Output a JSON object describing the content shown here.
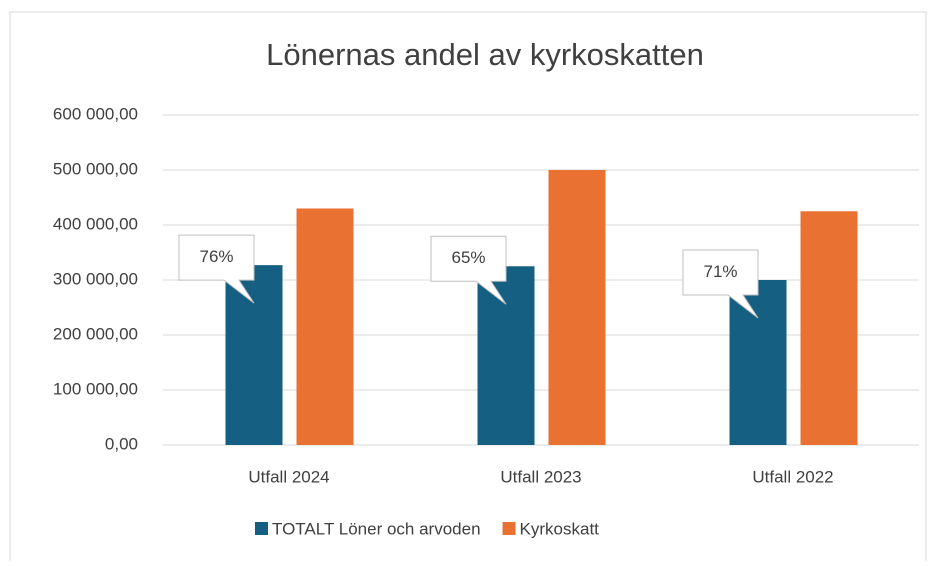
{
  "chart_data": {
    "type": "bar",
    "title": "Lönernas andel av kyrkoskatten",
    "categories": [
      "Utfall 2024",
      "Utfall 2023",
      "Utfall 2022"
    ],
    "series": [
      {
        "name": "TOTALT Löner och arvoden",
        "color": "#156082",
        "values": [
          327000,
          325000,
          300000
        ]
      },
      {
        "name": "Kyrkoskatt",
        "color": "#e97132",
        "values": [
          430000,
          500000,
          425000
        ]
      }
    ],
    "annotations": [
      "76%",
      "65%",
      "71%"
    ],
    "ylim": [
      0,
      600000
    ],
    "yticks": [
      {
        "value": 0,
        "label": "0,00"
      },
      {
        "value": 100000,
        "label": "100 000,00"
      },
      {
        "value": 200000,
        "label": "200 000,00"
      },
      {
        "value": 300000,
        "label": "300 000,00"
      },
      {
        "value": 400000,
        "label": "400 000,00"
      },
      {
        "value": 500000,
        "label": "500 000,00"
      },
      {
        "value": 600000,
        "label": "600 000,00"
      }
    ],
    "grid": true,
    "legend": "bottom"
  }
}
